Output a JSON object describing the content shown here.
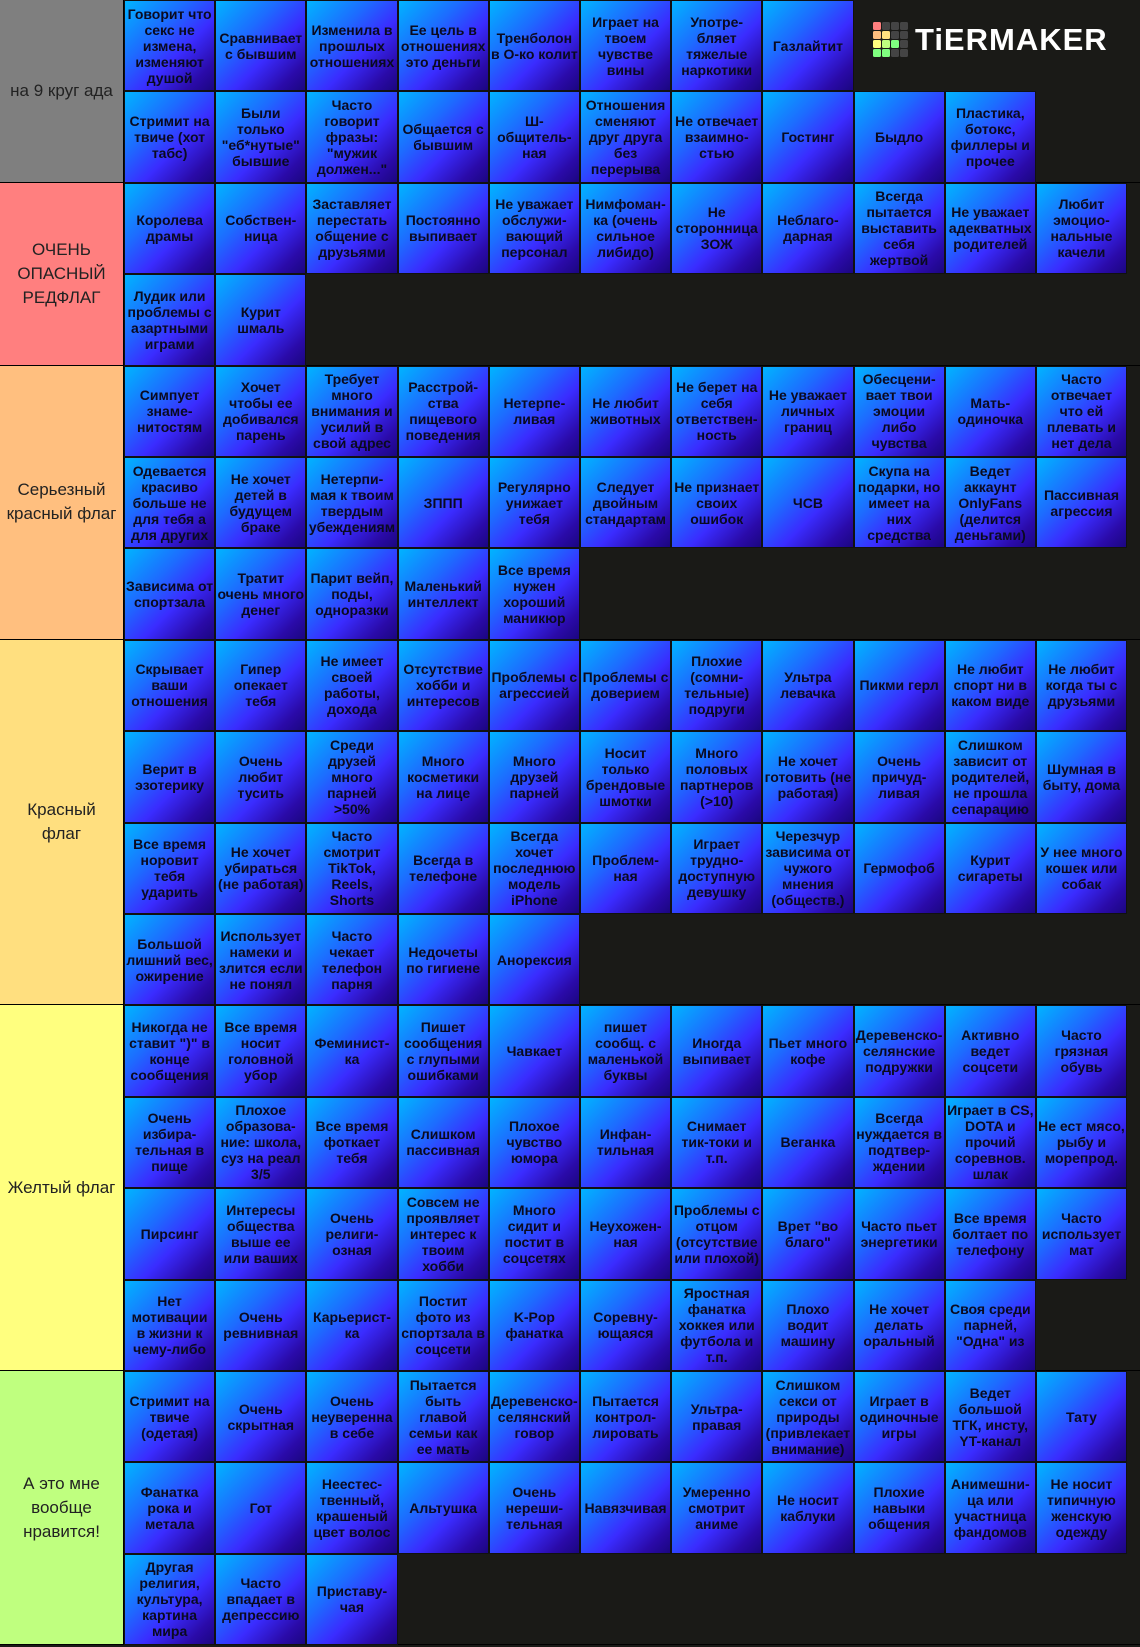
{
  "logo": "TiERMAKER",
  "tiers": [
    {
      "label": "на 9 круг ада",
      "color": "#7f7f7f",
      "items": [
        "Говорит что секс не измена, изменяют душой",
        "Сравнивает с бывшим",
        "Изменила в прошлых отношениях",
        "Ее цель в отношениях это деньги",
        "Тренболон в О-ко колит",
        "Играет на твоем чувстве вины",
        "Употре-бляет тяжелые наркотики",
        "Газлайтит",
        "Стримит на твиче (хот табс)",
        "Были только \"еб*нутые\" бывшие",
        "Часто говорит фразы: \"мужик должен...\"",
        "Общается с бывшим",
        "Ш-общитель-ная",
        "Отношения сменяют друг друга без перерыва",
        "Не отвечает взаимно-стью",
        "Гостинг",
        "Быдло",
        "Пластика, ботокс, филлеры и прочее"
      ]
    },
    {
      "label": "ОЧЕНЬ ОПАСНЫЙ РЕДФЛАГ",
      "color": "#ff7f7f",
      "items": [
        "Королева драмы",
        "Собствен-ница",
        "Заставляет перестать общение с друзьями",
        "Постоянно выпивает",
        "Не уважает обслужи-вающий персонал",
        "Нимфоман-ка (очень сильное либидо)",
        "Не сторонница ЗОЖ",
        "Неблаго-дарная",
        "Всегда пытается выставить себя жертвой",
        "Не уважает адекватных родителей",
        "Любит эмоцио-нальные качели",
        "Лудик или проблемы с азартными играми",
        "Курит шмаль"
      ]
    },
    {
      "label": "Серьезный красный флаг",
      "color": "#ffbf7f",
      "items": [
        "Симпует знаме-нитостям",
        "Хочет чтобы ее добивался парень",
        "Требует много внимания и усилий в свой адрес",
        "Расстрой-ства пищевого поведения",
        "Нетерпе-ливая",
        "Не любит животных",
        "Не берет на себя ответствен-ность",
        "Не уважает личных границ",
        "Обесцени-вает твои эмоции либо чувства",
        "Мать-одиночка",
        "Часто отвечает что ей плевать и нет дела",
        "Одевается красиво больше не для тебя а для других",
        "Не хочет детей в будущем браке",
        "Нетерпи-мая к твоим твердым убеждениям",
        "ЗППП",
        "Регулярно унижает тебя",
        "Следует двойным стандартам",
        "Не признает своих ошибок",
        "ЧСВ",
        "Скупа на подарки, но имеет на них средства",
        "Ведет аккаунт OnlyFans (делится деньгами)",
        "Пассивная агрессия",
        "Зависима от спортзала",
        "Тратит очень много денег",
        "Парит вейп, поды, одноразки",
        "Маленький интеллект",
        "Все время нужен хороший маникюр"
      ]
    },
    {
      "label": "Красный флаг",
      "color": "#ffdf7f",
      "items": [
        "Скрывает ваши отношения",
        "Гипер опекает тебя",
        "Не имеет своей работы, дохода",
        "Отсутствие хобби и интересов",
        "Проблемы с агрессией",
        "Проблемы с доверием",
        "Плохие (сомни-тельные) подруги",
        "Ультра левачка",
        "Пикми герл",
        "Не любит спорт ни в каком виде",
        "Не любит когда ты с друзьями",
        "Верит в эзотерику",
        "Очень любит тусить",
        "Среди друзей много парней >50%",
        "Много косметики на лице",
        "Много друзей парней",
        "Носит только брендовые шмотки",
        "Много половых партнеров (>10)",
        "Не хочет готовить (не работая)",
        "Очень причуд-ливая",
        "Слишком зависит от родителей, не прошла сепарацию",
        "Шумная в быту, дома",
        "Все время норовит тебя ударить",
        "Не хочет убираться (не работая)",
        "Часто смотрит TikTok, Reels, Shorts",
        "Всегда в телефоне",
        "Всегда хочет последнюю модель iPhone",
        "Проблем-ная",
        "Играет трудно-доступную девушку",
        "Черезчур зависима от чужого мнения (обществ.)",
        "Гермофоб",
        "Курит сигареты",
        "У нее много кошек или собак",
        "Большой лишний вес, ожирение",
        "Использует намеки и злится если не понял",
        "Часто чекает телефон парня",
        "Недочеты по гигиене",
        "Анорексия"
      ]
    },
    {
      "label": "Желтый флаг",
      "color": "#ffff7f",
      "items": [
        "Никогда не ставит \")\" в конце сообщения",
        "Все время носит головной убор",
        "Феминист-ка",
        "Пишет сообщения с глупыми ошибками",
        "Чавкает",
        "пишет сообщ. с маленькой буквы",
        "Иногда выпивает",
        "Пьет много кофе",
        "Деревенско-селянские подружки",
        "Активно ведет соцсети",
        "Часто грязная обувь",
        "Очень избира-тельная в пище",
        "Плохое образова-ние: школа, суз на реал 3/5",
        "Все время фоткает тебя",
        "Слишком пассивная",
        "Плохое чувство юмора",
        "Инфан-тильная",
        "Снимает тик-токи и т.п.",
        "Веганка",
        "Всегда нуждается в подтвер-ждении",
        "Играет в CS, DOTA и прочий соревнов. шлак",
        "Не ест мясо, рыбу и морепрод.",
        "Пирсинг",
        "Интересы общества выше ее или ваших",
        "Очень религи-озная",
        "Совсем не проявляет интерес к твоим хобби",
        "Много сидит и постит в соцсетях",
        "Неухожен-ная",
        "Проблемы с отцом (отсутствие или плохой)",
        "Врет \"во благо\"",
        "Часто пьет энергетики",
        "Все время болтает по телефону",
        "Часто использует мат",
        "Нет мотивации в жизни к чему-либо",
        "Очень ревнивная",
        "Карьерист-ка",
        "Постит фото из спортзала в соцсети",
        "K-Pop фанатка",
        "Соревну-ющаяся",
        "Яростная фанатка хоккея или футбола и т.п.",
        "Плохо водит машину",
        "Не хочет делать оральный",
        "Своя среди парней, \"Одна\" из"
      ]
    },
    {
      "label": "А это мне вообще нравится!",
      "color": "#bfff7f",
      "items": [
        "Стримит на твиче (одетая)",
        "Очень скрытная",
        "Очень неуверенна в себе",
        "Пытается быть главой семьи как ее мать",
        "Деревенско-селянский говор",
        "Пытается контрол-лировать",
        "Ультра-правая",
        "Слишком секси от природы (привлекает внимание)",
        "Играет в одиночные игры",
        "Ведет большой ТГК, инсту, YT-канал",
        "Тату",
        "Фанатка рока и метала",
        "Гот",
        "Неестес-твенный, крашеный цвет волос",
        "Альтушка",
        "Очень нереши-тельная",
        "Навязчивая",
        "Умеренно смотрит аниме",
        "Не носит каблуки",
        "Плохие навыки общения",
        "Анимешни-ца или участница фандомов",
        "Не носит типичную женскую одежду",
        "Другая религия, культура, картина мира",
        "Часто впадает в депрессию",
        "Приставу-чая"
      ]
    }
  ]
}
